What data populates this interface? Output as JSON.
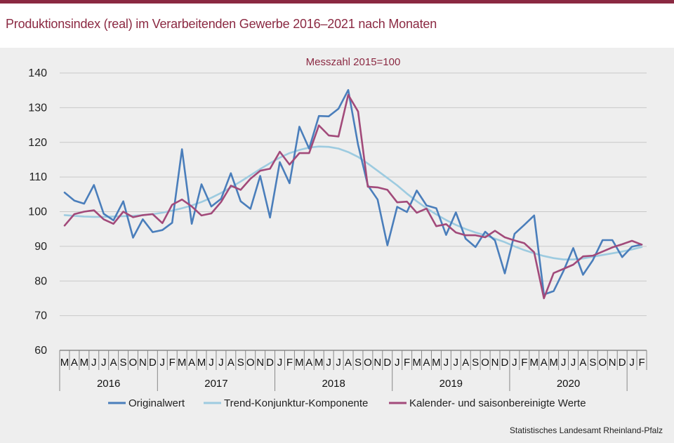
{
  "header": {
    "title": "Produktionsindex (real) im Verarbeitenden Gewerbe 2016–2021 nach Monaten"
  },
  "footer": {
    "source": "Statistisches Landesamt  Rheinland-Pfalz"
  },
  "colors": {
    "accent": "#8b2942",
    "original": "#4a7ebb",
    "trend": "#9dcbe0",
    "adjusted": "#a24a7a",
    "panel": "#eeeeee"
  },
  "chart_data": {
    "type": "line",
    "title": "Produktionsindex (real) im Verarbeitenden Gewerbe 2016–2021 nach Monaten",
    "unit_label": "Messzahl  2015=100",
    "xlabel": "",
    "ylabel": "",
    "ylim": [
      60,
      140
    ],
    "yticks": [
      60,
      70,
      80,
      90,
      100,
      110,
      120,
      130,
      140
    ],
    "grid": true,
    "legend_position": "bottom",
    "x": [
      "M",
      "A",
      "M",
      "J",
      "J",
      "A",
      "S",
      "O",
      "N",
      "D",
      "J",
      "F",
      "M",
      "A",
      "M",
      "J",
      "J",
      "A",
      "S",
      "O",
      "N",
      "D",
      "J",
      "F",
      "M",
      "A",
      "M",
      "J",
      "J",
      "A",
      "S",
      "O",
      "N",
      "D",
      "J",
      "F",
      "M",
      "A",
      "M",
      "J",
      "J",
      "A",
      "S",
      "O",
      "N",
      "D",
      "J",
      "F",
      "M",
      "A",
      "M",
      "J",
      "J",
      "A",
      "S",
      "O",
      "N",
      "D",
      "J",
      "F"
    ],
    "years": [
      {
        "label": "2016",
        "start": 0,
        "count": 10
      },
      {
        "label": "2017",
        "start": 10,
        "count": 12
      },
      {
        "label": "2018",
        "start": 22,
        "count": 12
      },
      {
        "label": "2019",
        "start": 34,
        "count": 12
      },
      {
        "label": "2020",
        "start": 46,
        "count": 12
      }
    ],
    "series": [
      {
        "name": "Originalwert",
        "values": [
          105.5,
          103.2,
          102.3,
          107.7,
          99.4,
          97.5,
          103.0,
          92.5,
          97.8,
          94.1,
          94.7,
          96.8,
          118.0,
          96.5,
          107.9,
          101.5,
          103.7,
          111.1,
          103.0,
          100.8,
          110.3,
          98.3,
          114.3,
          108.2,
          124.5,
          118.2,
          127.6,
          127.5,
          129.7,
          135.1,
          119.3,
          107.6,
          103.5,
          90.3,
          101.4,
          99.9,
          106.1,
          101.8,
          101.0,
          93.3,
          99.8,
          92.2,
          89.8,
          94.2,
          91.7,
          82.2,
          93.6,
          96.2,
          98.9,
          76.1,
          77.1,
          82.9,
          89.5,
          81.8,
          86.0,
          91.8,
          91.8,
          86.9,
          89.9,
          90.5
        ]
      },
      {
        "name": "Trend-Konjunktur-Komponente",
        "values": [
          99.0,
          98.8,
          98.6,
          98.5,
          98.5,
          98.6,
          98.7,
          98.8,
          99.0,
          99.3,
          99.7,
          100.3,
          101.0,
          101.8,
          102.8,
          104.0,
          105.4,
          107.0,
          108.7,
          110.5,
          112.3,
          114.0,
          115.6,
          116.9,
          117.8,
          118.5,
          118.8,
          118.7,
          118.2,
          117.2,
          115.8,
          113.9,
          111.8,
          109.7,
          107.6,
          105.2,
          103.0,
          101.0,
          99.2,
          97.6,
          96.2,
          95.0,
          94.0,
          93.2,
          92.2,
          91.2,
          90.0,
          88.9,
          88.0,
          87.2,
          86.6,
          86.2,
          86.2,
          86.5,
          87.0,
          87.5,
          88.0,
          88.5,
          89.1,
          89.8
        ]
      },
      {
        "name": "Kalender- und saisonbereinigte Werte",
        "values": [
          96.0,
          99.3,
          100.0,
          100.4,
          97.8,
          96.5,
          100.0,
          98.4,
          99.0,
          99.3,
          96.7,
          102.0,
          103.5,
          101.5,
          98.9,
          99.5,
          102.8,
          107.5,
          106.3,
          109.5,
          111.8,
          112.4,
          117.3,
          113.6,
          116.9,
          116.9,
          124.9,
          122.0,
          121.7,
          133.7,
          128.9,
          107.2,
          107.0,
          106.3,
          102.7,
          102.9,
          99.7,
          100.9,
          95.8,
          96.4,
          94.0,
          93.2,
          93.2,
          92.6,
          94.5,
          92.6,
          91.7,
          90.9,
          88.3,
          75.0,
          82.3,
          83.5,
          84.7,
          87.1,
          87.3,
          88.5,
          89.7,
          90.6,
          91.6,
          90.5
        ]
      }
    ]
  }
}
